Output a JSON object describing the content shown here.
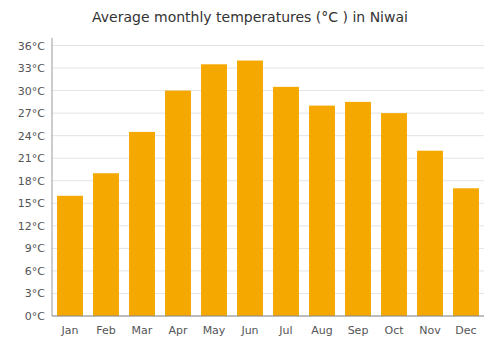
{
  "chart_data": {
    "type": "bar",
    "title": "Average monthly temperatures (°C ) in Niwai",
    "categories": [
      "Jan",
      "Feb",
      "Mar",
      "Apr",
      "May",
      "Jun",
      "Jul",
      "Aug",
      "Sep",
      "Oct",
      "Nov",
      "Dec"
    ],
    "values": [
      16.0,
      19.0,
      24.5,
      30.0,
      33.5,
      34.0,
      30.5,
      28.0,
      28.5,
      27.0,
      22.0,
      17.0
    ],
    "color": "#F5A800",
    "ylim": [
      0,
      37
    ],
    "yticks": [
      {
        "value": 0,
        "label": "0°C"
      },
      {
        "value": 3,
        "label": "3°C"
      },
      {
        "value": 6,
        "label": "6°C"
      },
      {
        "value": 9,
        "label": "9°C"
      },
      {
        "value": 12,
        "label": "12°C"
      },
      {
        "value": 15,
        "label": "15°C"
      },
      {
        "value": 18,
        "label": "18°C"
      },
      {
        "value": 21,
        "label": "21°C"
      },
      {
        "value": 24,
        "label": "24°C"
      },
      {
        "value": 27,
        "label": "27°C"
      },
      {
        "value": 30,
        "label": "30°C"
      },
      {
        "value": 33,
        "label": "33°C"
      },
      {
        "value": 36,
        "label": "36°C"
      }
    ],
    "grid": true
  }
}
